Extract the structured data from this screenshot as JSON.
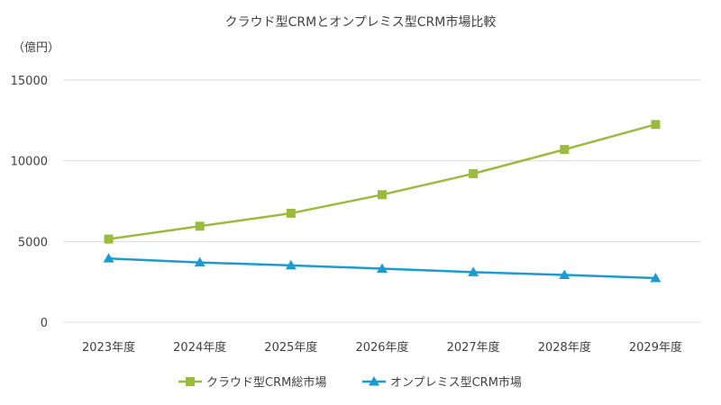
{
  "chart_data": {
    "type": "line",
    "title": "クラウド型CRMとオンプレミス型CRM市場比較",
    "ylabel": "（億円）",
    "xlabel": "",
    "ylim": [
      0,
      15000
    ],
    "yticks": [
      0,
      5000,
      10000,
      15000
    ],
    "grid": true,
    "legend_position": "bottom",
    "categories": [
      "2023年度",
      "2024年度",
      "2025年度",
      "2026年度",
      "2027年度",
      "2028年度",
      "2029年度"
    ],
    "series": [
      {
        "name": "クラウド型CRM総市場",
        "color": "#9bbb3f",
        "marker": "square",
        "values": [
          5150,
          5950,
          6750,
          7900,
          9200,
          10700,
          12250
        ]
      },
      {
        "name": "オンプレミス型CRM市場",
        "color": "#1b9bd1",
        "marker": "triangle",
        "values": [
          3950,
          3700,
          3520,
          3320,
          3100,
          2930,
          2730
        ]
      }
    ]
  }
}
